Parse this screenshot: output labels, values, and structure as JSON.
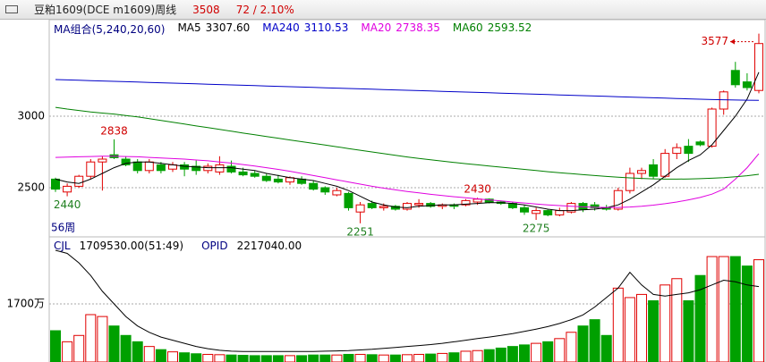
{
  "chart_data": {
    "type": "candlestick",
    "title": "豆粕1609(DCE m1609)周线",
    "last_price": 3508,
    "change": "72 / 2.10%",
    "ma_title": "MA组合(5,240,20,60)",
    "period_label": "56周",
    "up_color": "#e00000",
    "down_color": "#00a000",
    "ylim": [
      2175,
      3637.5
    ],
    "yticks": [
      2500,
      3000
    ],
    "grid": true,
    "open": [
      2560,
      2470,
      2510,
      2580,
      2680,
      2730,
      2700,
      2680,
      2620,
      2660,
      2630,
      2660,
      2650,
      2620,
      2610,
      2650,
      2610,
      2600,
      2580,
      2560,
      2540,
      2560,
      2530,
      2500,
      2450,
      2460,
      2330,
      2390,
      2360,
      2370,
      2350,
      2380,
      2390,
      2370,
      2380,
      2380,
      2400,
      2420,
      2400,
      2390,
      2360,
      2320,
      2340,
      2310,
      2330,
      2390,
      2380,
      2360,
      2350,
      2480,
      2600,
      2660,
      2580,
      2740,
      2790,
      2820,
      2790,
      3050,
      3320,
      3240,
      3180
    ],
    "high": [
      2570,
      2530,
      2590,
      2700,
      2720,
      2838,
      2720,
      2700,
      2700,
      2680,
      2680,
      2680,
      2690,
      2670,
      2720,
      2690,
      2640,
      2620,
      2600,
      2590,
      2580,
      2580,
      2550,
      2510,
      2500,
      2470,
      2400,
      2410,
      2390,
      2380,
      2400,
      2420,
      2400,
      2390,
      2390,
      2420,
      2430,
      2425,
      2410,
      2400,
      2380,
      2360,
      2350,
      2360,
      2400,
      2400,
      2400,
      2380,
      2500,
      2640,
      2640,
      2700,
      2770,
      2810,
      2840,
      2830,
      3060,
      3180,
      3380,
      3300,
      3577
    ],
    "low": [
      2470,
      2440,
      2500,
      2560,
      2480,
      2700,
      2650,
      2600,
      2600,
      2600,
      2610,
      2580,
      2590,
      2600,
      2590,
      2600,
      2580,
      2570,
      2540,
      2530,
      2520,
      2520,
      2480,
      2450,
      2440,
      2340,
      2251,
      2350,
      2340,
      2340,
      2340,
      2360,
      2360,
      2350,
      2350,
      2370,
      2380,
      2390,
      2380,
      2350,
      2310,
      2275,
      2300,
      2300,
      2320,
      2330,
      2340,
      2340,
      2340,
      2460,
      2560,
      2560,
      2570,
      2700,
      2680,
      2790,
      2780,
      3010,
      3200,
      3180,
      3160
    ],
    "close": [
      2490,
      2510,
      2580,
      2680,
      2700,
      2710,
      2660,
      2620,
      2680,
      2620,
      2660,
      2630,
      2620,
      2650,
      2660,
      2610,
      2590,
      2580,
      2550,
      2540,
      2570,
      2530,
      2490,
      2470,
      2480,
      2360,
      2380,
      2360,
      2370,
      2350,
      2390,
      2390,
      2370,
      2380,
      2370,
      2410,
      2420,
      2400,
      2390,
      2360,
      2330,
      2340,
      2310,
      2340,
      2390,
      2350,
      2360,
      2350,
      2480,
      2600,
      2620,
      2580,
      2740,
      2780,
      2740,
      2800,
      3050,
      3170,
      3220,
      3200,
      3508
    ],
    "series": [
      {
        "name": "MA5",
        "last_label": "3307.60",
        "color": "#000000",
        "values": [
          2560,
          2540,
          2530,
          2560,
          2600,
          2640,
          2670,
          2680,
          2680,
          2670,
          2660,
          2650,
          2645,
          2640,
          2640,
          2640,
          2630,
          2620,
          2600,
          2585,
          2570,
          2560,
          2550,
          2530,
          2510,
          2480,
          2440,
          2400,
          2380,
          2365,
          2360,
          2370,
          2375,
          2380,
          2380,
          2385,
          2390,
          2395,
          2395,
          2390,
          2380,
          2365,
          2350,
          2340,
          2340,
          2345,
          2350,
          2360,
          2380,
          2420,
          2470,
          2520,
          2580,
          2640,
          2690,
          2730,
          2800,
          2900,
          3000,
          3120,
          3307.6
        ]
      },
      {
        "name": "MA240",
        "last_label": "3110.53",
        "color": "#0000c8",
        "values": [
          3256,
          3254,
          3251,
          3249,
          3246,
          3244,
          3241,
          3239,
          3236,
          3234,
          3231,
          3229,
          3226,
          3224,
          3221,
          3219,
          3216,
          3214,
          3211,
          3209,
          3206,
          3204,
          3201,
          3199,
          3196,
          3194,
          3191,
          3189,
          3186,
          3184,
          3181,
          3179,
          3176,
          3174,
          3171,
          3169,
          3166,
          3164,
          3161,
          3159,
          3156,
          3154,
          3151,
          3149,
          3146,
          3144,
          3141,
          3139,
          3136,
          3134,
          3131,
          3129,
          3126,
          3124,
          3121,
          3119,
          3116,
          3115,
          3113,
          3112,
          3110.53
        ]
      },
      {
        "name": "MA20",
        "last_label": "2738.35",
        "color": "#e000e0",
        "values": [
          2712,
          2714,
          2716,
          2718,
          2720,
          2720,
          2718,
          2716,
          2712,
          2708,
          2704,
          2700,
          2694,
          2688,
          2680,
          2672,
          2662,
          2652,
          2640,
          2628,
          2615,
          2600,
          2585,
          2570,
          2555,
          2540,
          2525,
          2510,
          2497,
          2485,
          2474,
          2464,
          2454,
          2445,
          2437,
          2430,
          2422,
          2415,
          2408,
          2400,
          2393,
          2386,
          2380,
          2375,
          2370,
          2366,
          2363,
          2362,
          2362,
          2365,
          2370,
          2378,
          2388,
          2400,
          2415,
          2432,
          2455,
          2490,
          2560,
          2640,
          2738.35
        ]
      },
      {
        "name": "MA60",
        "last_label": "2593.52",
        "color": "#008000",
        "values": [
          3062,
          3050,
          3040,
          3030,
          3022,
          3015,
          3005,
          2995,
          2983,
          2970,
          2958,
          2945,
          2932,
          2920,
          2908,
          2895,
          2882,
          2870,
          2858,
          2846,
          2834,
          2822,
          2810,
          2798,
          2786,
          2774,
          2762,
          2750,
          2738,
          2726,
          2715,
          2705,
          2695,
          2686,
          2677,
          2668,
          2660,
          2652,
          2644,
          2636,
          2628,
          2620,
          2612,
          2605,
          2598,
          2591,
          2585,
          2579,
          2574,
          2569,
          2565,
          2562,
          2560,
          2560,
          2561,
          2563,
          2566,
          2570,
          2576,
          2584,
          2593.52
        ]
      }
    ],
    "volume": {
      "name": "CJL",
      "readout": "1709530.00(51:49)",
      "ylim": [
        0,
        3683
      ],
      "yticks": [
        {
          "value": 1700,
          "label": "1700万"
        }
      ],
      "values": [
        850,
        500,
        700,
        1360,
        1300,
        1000,
        700,
        500,
        350,
        250,
        180,
        150,
        120,
        100,
        90,
        80,
        70,
        60,
        60,
        60,
        60,
        60,
        80,
        80,
        80,
        100,
        100,
        90,
        80,
        80,
        90,
        100,
        110,
        130,
        150,
        200,
        220,
        250,
        300,
        350,
        400,
        450,
        500,
        600,
        800,
        1000,
        1200,
        700,
        2200,
        1900,
        2000,
        1800,
        2300,
        2500,
        1800,
        2600,
        3200,
        3200,
        3200,
        2900,
        3100
      ]
    },
    "opid": {
      "name": "OPID",
      "readout": "2217040.00",
      "color": "#000000",
      "values": [
        3400,
        3300,
        3000,
        2600,
        2100,
        1700,
        1300,
        1000,
        800,
        650,
        550,
        450,
        350,
        280,
        230,
        200,
        190,
        190,
        190,
        190,
        190,
        190,
        190,
        200,
        210,
        220,
        240,
        260,
        290,
        320,
        350,
        380,
        410,
        450,
        500,
        550,
        600,
        650,
        700,
        760,
        830,
        900,
        980,
        1080,
        1200,
        1350,
        1600,
        1900,
        2200,
        2700,
        2300,
        2000,
        1950,
        2000,
        2050,
        2150,
        2300,
        2450,
        2400,
        2300,
        2250
      ]
    }
  }
}
